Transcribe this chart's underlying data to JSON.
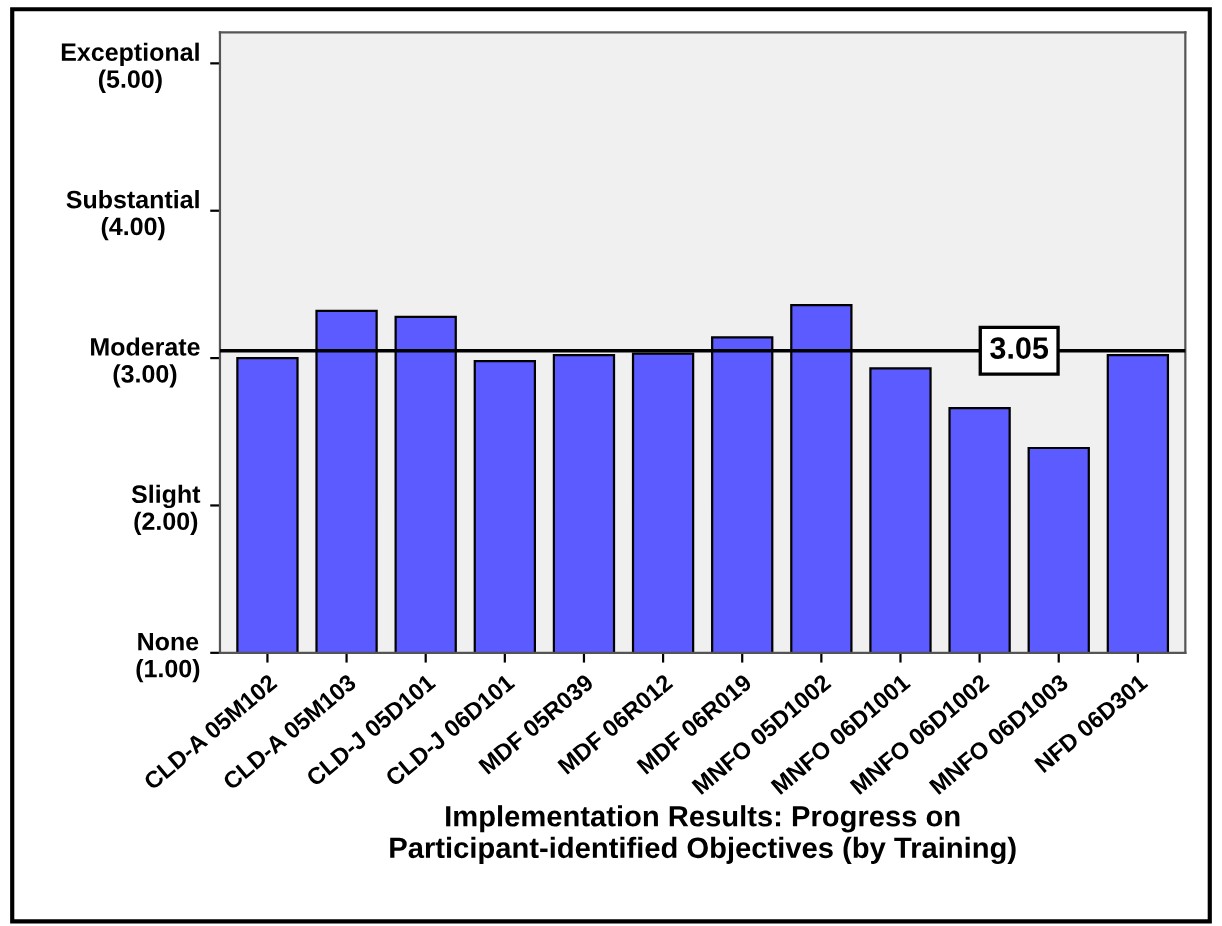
{
  "chart_data": {
    "type": "bar",
    "xlabel": "Implementation Results: Progress on\nParticipant-identified Objectives (by Training)",
    "categories": [
      "CLD-A 05M102",
      "CLD-A 05M103",
      "CLD-J 05D101",
      "CLD-J 06D101",
      "MDF 05R039",
      "MDF 06R012",
      "MDF 06R019",
      "MNFO 05D1002",
      "MNFO 06D1001",
      "MNFO 06D1002",
      "MNFO 06D1003",
      "NFD 06D301"
    ],
    "values": [
      3.0,
      3.32,
      3.28,
      2.98,
      3.02,
      3.03,
      3.14,
      3.36,
      2.93,
      2.66,
      2.39,
      3.02
    ],
    "color": "#5b5bff",
    "ylim": [
      1,
      5.21
    ],
    "yticks": [
      {
        "value": 1,
        "label": "None\n(1.00)"
      },
      {
        "value": 2,
        "label": "Slight\n(2.00)"
      },
      {
        "value": 3,
        "label": "Moderate\n(3.00)"
      },
      {
        "value": 4,
        "label": "Substantial\n(4.00)"
      },
      {
        "value": 5,
        "label": "Exceptional\n(5.00)"
      }
    ],
    "ref_lines": [
      {
        "axis": "y",
        "value": 3.05,
        "label": "3.05",
        "color": "#000000"
      }
    ],
    "grid": false
  }
}
